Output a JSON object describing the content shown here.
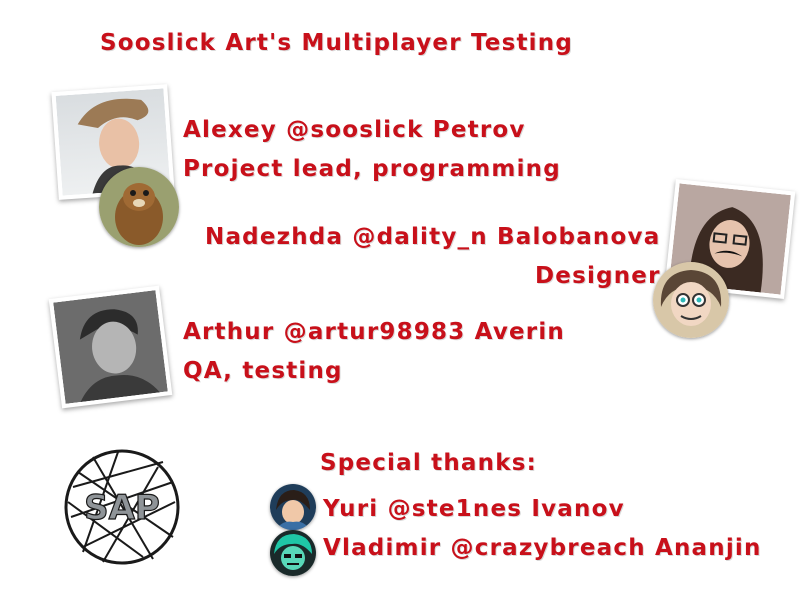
{
  "title": "Sooslick Art's Multiplayer Testing",
  "team": [
    {
      "name": "Alexey @sooslick Petrov",
      "role": "Project lead, programming"
    },
    {
      "name": "Nadezhda @dality_n Balobanova",
      "role": "Designer"
    },
    {
      "name": "Arthur @artur98983 Averin",
      "role": "QA, testing"
    }
  ],
  "special_thanks": {
    "heading": "Special thanks:",
    "people": [
      {
        "name": "Yuri @ste1nes Ivanov"
      },
      {
        "name": "Vladimir @crazybreach Ananjin"
      }
    ]
  },
  "logo_text": "SAP",
  "colors": {
    "accent": "#c8101a",
    "text_dark": "#b0101a"
  }
}
